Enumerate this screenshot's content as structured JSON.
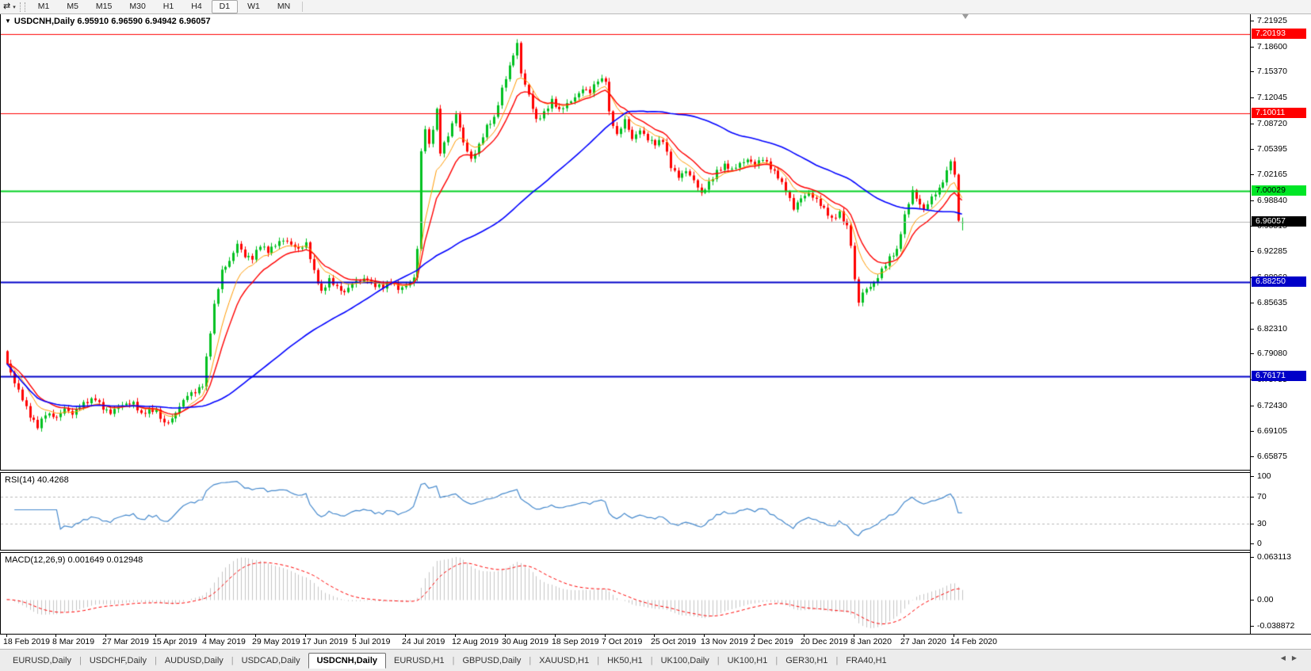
{
  "toolbar": {
    "timeframes": [
      "M1",
      "M5",
      "M15",
      "M30",
      "H1",
      "H4",
      "D1",
      "W1",
      "MN"
    ],
    "active_timeframe": "D1",
    "tools_icon": "chart-tools",
    "caret": "▾"
  },
  "chart": {
    "title_symbol": "USDCNH,Daily",
    "ohlc_text": "6.95910 6.96590 6.94942 6.96057",
    "title_caret": "▼",
    "price_axis_ticks": [
      "7.21925",
      "7.18600",
      "7.15370",
      "7.12045",
      "7.08720",
      "7.05395",
      "7.02165",
      "6.98840",
      "6.95515",
      "6.92285",
      "6.88960",
      "6.85635",
      "6.82310",
      "6.79080",
      "6.75755",
      "6.72430",
      "6.69105",
      "6.65875"
    ]
  },
  "indicators": {
    "rsi_label": "RSI(14)",
    "rsi_value": "40.4268",
    "rsi_ticks": [
      "100",
      "70",
      "30",
      "0"
    ],
    "macd_label": "MACD(12,26,9)",
    "macd_values": "0.001649 0.012948",
    "macd_ticks": [
      "0.063113",
      "0.00",
      "-0.038872"
    ]
  },
  "date_axis": {
    "labels": [
      "18 Feb 2019",
      "8 Mar 2019",
      "27 Mar 2019",
      "15 Apr 2019",
      "4 May 2019",
      "29 May 2019",
      "17 Jun 2019",
      "5 Jul 2019",
      "24 Jul 2019",
      "12 Aug 2019",
      "30 Aug 2019",
      "18 Sep 2019",
      "7 Oct 2019",
      "25 Oct 2019",
      "13 Nov 2019",
      "2 Dec 2019",
      "20 Dec 2019",
      "8 Jan 2020",
      "27 Jan 2020",
      "14 Feb 2020"
    ]
  },
  "tabs": {
    "items": [
      "EURUSD,Daily",
      "USDCHF,Daily",
      "AUDUSD,Daily",
      "USDCAD,Daily",
      "USDCNH,Daily",
      "EURUSD,H1",
      "GBPUSD,Daily",
      "XAUUSD,H1",
      "HK50,H1",
      "UK100,Daily",
      "UK100,H1",
      "GER30,H1",
      "FRA40,H1"
    ],
    "active": "USDCNH,Daily",
    "scroll_left": "◀",
    "scroll_right": "▶"
  },
  "colors": {
    "up_candle": "#00c020",
    "down_candle": "#ff0000",
    "ma_fast": "#ff9900",
    "ma_mid": "#ff0000",
    "ma_slow": "#0000ff",
    "rsi_line": "#4488cc",
    "rsi_level": "#b8b8b8",
    "macd_hist": "#c4c4c4",
    "macd_signal": "#ff0000",
    "current_price_line": "#b4b4b4"
  },
  "chart_data": {
    "type": "candlestick",
    "symbol": "USDCNH",
    "timeframe": "Daily",
    "bars": 250,
    "current_bar_ohlc": [
      6.9591,
      6.9659,
      6.94942,
      6.96057
    ],
    "y_range": [
      6.6414,
      7.2275
    ],
    "close_path": [
      [
        0,
        6.778
      ],
      [
        2,
        6.752
      ],
      [
        4,
        6.732
      ],
      [
        6,
        6.712
      ],
      [
        8,
        6.698
      ],
      [
        10,
        6.712
      ],
      [
        13,
        6.708
      ],
      [
        15,
        6.722
      ],
      [
        17,
        6.714
      ],
      [
        19,
        6.722
      ],
      [
        21,
        6.728
      ],
      [
        23,
        6.734
      ],
      [
        25,
        6.722
      ],
      [
        27,
        6.714
      ],
      [
        29,
        6.721
      ],
      [
        31,
        6.726
      ],
      [
        33,
        6.729
      ],
      [
        35,
        6.713
      ],
      [
        37,
        6.717
      ],
      [
        39,
        6.716
      ],
      [
        41,
        6.702
      ],
      [
        43,
        6.708
      ],
      [
        45,
        6.722
      ],
      [
        47,
        6.736
      ],
      [
        49,
        6.742
      ],
      [
        51,
        6.752
      ],
      [
        52,
        6.786
      ],
      [
        54,
        6.852
      ],
      [
        56,
        6.896
      ],
      [
        58,
        6.91
      ],
      [
        60,
        6.934
      ],
      [
        62,
        6.916
      ],
      [
        64,
        6.912
      ],
      [
        66,
        6.93
      ],
      [
        68,
        6.924
      ],
      [
        70,
        6.932
      ],
      [
        72,
        6.936
      ],
      [
        74,
        6.93
      ],
      [
        76,
        6.926
      ],
      [
        78,
        6.934
      ],
      [
        80,
        6.896
      ],
      [
        82,
        6.868
      ],
      [
        84,
        6.886
      ],
      [
        86,
        6.878
      ],
      [
        88,
        6.87
      ],
      [
        90,
        6.88
      ],
      [
        92,
        6.884
      ],
      [
        94,
        6.888
      ],
      [
        96,
        6.88
      ],
      [
        98,
        6.876
      ],
      [
        100,
        6.882
      ],
      [
        102,
        6.874
      ],
      [
        104,
        6.88
      ],
      [
        106,
        6.888
      ],
      [
        107,
        6.926
      ],
      [
        108,
        7.048
      ],
      [
        109,
        7.08
      ],
      [
        110,
        7.058
      ],
      [
        112,
        7.105
      ],
      [
        113,
        7.052
      ],
      [
        115,
        7.072
      ],
      [
        117,
        7.098
      ],
      [
        119,
        7.062
      ],
      [
        121,
        7.042
      ],
      [
        123,
        7.06
      ],
      [
        125,
        7.082
      ],
      [
        127,
        7.092
      ],
      [
        129,
        7.132
      ],
      [
        131,
        7.162
      ],
      [
        133,
        7.19
      ],
      [
        134,
        7.15
      ],
      [
        136,
        7.122
      ],
      [
        138,
        7.092
      ],
      [
        140,
        7.102
      ],
      [
        142,
        7.116
      ],
      [
        144,
        7.102
      ],
      [
        146,
        7.112
      ],
      [
        148,
        7.122
      ],
      [
        150,
        7.132
      ],
      [
        152,
        7.126
      ],
      [
        154,
        7.142
      ],
      [
        156,
        7.144
      ],
      [
        157,
        7.102
      ],
      [
        159,
        7.072
      ],
      [
        161,
        7.09
      ],
      [
        163,
        7.066
      ],
      [
        165,
        7.08
      ],
      [
        167,
        7.068
      ],
      [
        169,
        7.06
      ],
      [
        171,
        7.064
      ],
      [
        173,
        7.032
      ],
      [
        175,
        7.02
      ],
      [
        177,
        7.026
      ],
      [
        179,
        7.012
      ],
      [
        181,
        6.996
      ],
      [
        183,
        7.012
      ],
      [
        185,
        7.026
      ],
      [
        187,
        7.032
      ],
      [
        189,
        7.026
      ],
      [
        191,
        7.036
      ],
      [
        193,
        7.042
      ],
      [
        195,
        7.034
      ],
      [
        197,
        7.04
      ],
      [
        199,
        7.03
      ],
      [
        201,
        7.02
      ],
      [
        203,
        7.002
      ],
      [
        205,
        6.976
      ],
      [
        207,
        6.99
      ],
      [
        209,
        6.998
      ],
      [
        211,
        6.99
      ],
      [
        213,
        6.976
      ],
      [
        215,
        6.962
      ],
      [
        217,
        6.972
      ],
      [
        219,
        6.956
      ],
      [
        220,
        6.932
      ],
      [
        221,
        6.886
      ],
      [
        222,
        6.856
      ],
      [
        223,
        6.868
      ],
      [
        224,
        6.872
      ],
      [
        226,
        6.882
      ],
      [
        228,
        6.9
      ],
      [
        230,
        6.914
      ],
      [
        232,
        6.922
      ],
      [
        234,
        6.968
      ],
      [
        236,
        7.002
      ],
      [
        237,
        6.992
      ],
      [
        239,
        6.976
      ],
      [
        241,
        6.99
      ],
      [
        243,
        7.002
      ],
      [
        245,
        7.026
      ],
      [
        246,
        7.042
      ],
      [
        247,
        7.02
      ],
      [
        248,
        6.962
      ],
      [
        249,
        6.96057
      ]
    ],
    "hlines": [
      {
        "label": "7.20193",
        "value": 7.20193,
        "color": "#ff0000",
        "badge_bg": "#ff0000",
        "badge_fg": "#ffffff",
        "lw": 1
      },
      {
        "label": "7.10011",
        "value": 7.10011,
        "color": "#ff0000",
        "badge_bg": "#ff0000",
        "badge_fg": "#ffffff",
        "lw": 1
      },
      {
        "label": "7.00029",
        "value": 7.00029,
        "color": "#00d020",
        "badge_bg": "#00e626",
        "badge_fg": "#000000",
        "lw": 2
      },
      {
        "label": "6.88250",
        "value": 6.8825,
        "color": "#0000c8",
        "badge_bg": "#0000c8",
        "badge_fg": "#ffffff",
        "lw": 2
      },
      {
        "label": "6.76171",
        "value": 6.76171,
        "color": "#0000c8",
        "badge_bg": "#0000c8",
        "badge_fg": "#ffffff",
        "lw": 2
      }
    ],
    "current_price": {
      "label": "6.96057",
      "value": 6.96057,
      "badge_bg": "#000000",
      "badge_fg": "#ffffff"
    },
    "moving_averages": [
      {
        "type": "ema",
        "period": 8,
        "color": "#ff9900",
        "width": 1
      },
      {
        "type": "ema",
        "period": 13,
        "color": "#ff0000",
        "width": 1.4
      },
      {
        "type": "sma",
        "period": 55,
        "color": "#0000ff",
        "width": 1.6
      }
    ],
    "rsi": {
      "period": 14,
      "current": 40.4268,
      "range": [
        0,
        100
      ],
      "levels": [
        70,
        30
      ]
    },
    "macd": {
      "fast": 12,
      "slow": 26,
      "signal": 9,
      "current_macd": 0.001649,
      "current_signal": 0.012948,
      "scale_ticks": [
        0.063113,
        0.0,
        -0.038872
      ]
    },
    "x_labels_first_bar": 0,
    "x_labels_step_bars": 13
  }
}
